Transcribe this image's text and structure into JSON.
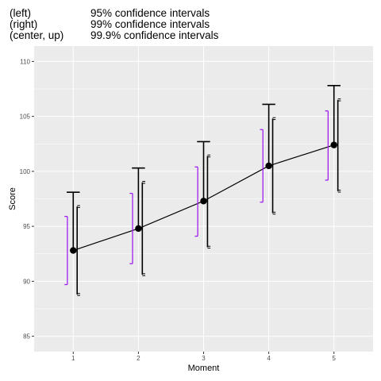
{
  "chart_data": {
    "type": "line",
    "title_lines": [
      {
        "label": "(left)",
        "text": "95% confidence intervals"
      },
      {
        "label": "(right)",
        "text": "99% confidence intervals"
      },
      {
        "label": "(center, up)",
        "text": "99.9% confidence intervals"
      }
    ],
    "xlabel": "Moment",
    "ylabel": "Score",
    "x_ticks": [
      "1",
      "2",
      "3",
      "4",
      "5"
    ],
    "y_ticks": [
      "85",
      "90",
      "95",
      "100",
      "105",
      "110"
    ],
    "xlim": [
      0.4,
      5.6
    ],
    "ylim": [
      83.6,
      111.4
    ],
    "grid": true,
    "colors": {
      "panel": "#ebebeb",
      "grid": "#ffffff",
      "line": "#000000",
      "ci95": "#a020f0",
      "ci99": "#000000",
      "ci999": "#000000"
    },
    "series": [
      {
        "x": [
          1,
          2,
          3,
          4,
          5
        ],
        "values": [
          92.8,
          94.8,
          97.3,
          100.5,
          102.4
        ],
        "ci95": [
          [
            89.7,
            95.9
          ],
          [
            91.6,
            98.0
          ],
          [
            94.1,
            100.4
          ],
          [
            97.2,
            103.8
          ],
          [
            99.2,
            105.5
          ]
        ],
        "ci99": [
          [
            88.8,
            96.8
          ],
          [
            90.6,
            99.0
          ],
          [
            93.1,
            101.4
          ],
          [
            96.2,
            104.8
          ],
          [
            98.2,
            106.5
          ]
        ],
        "ci999": [
          [
            null,
            98.1
          ],
          [
            null,
            100.3
          ],
          [
            null,
            102.7
          ],
          [
            null,
            106.1
          ],
          [
            null,
            107.8
          ]
        ]
      }
    ]
  }
}
